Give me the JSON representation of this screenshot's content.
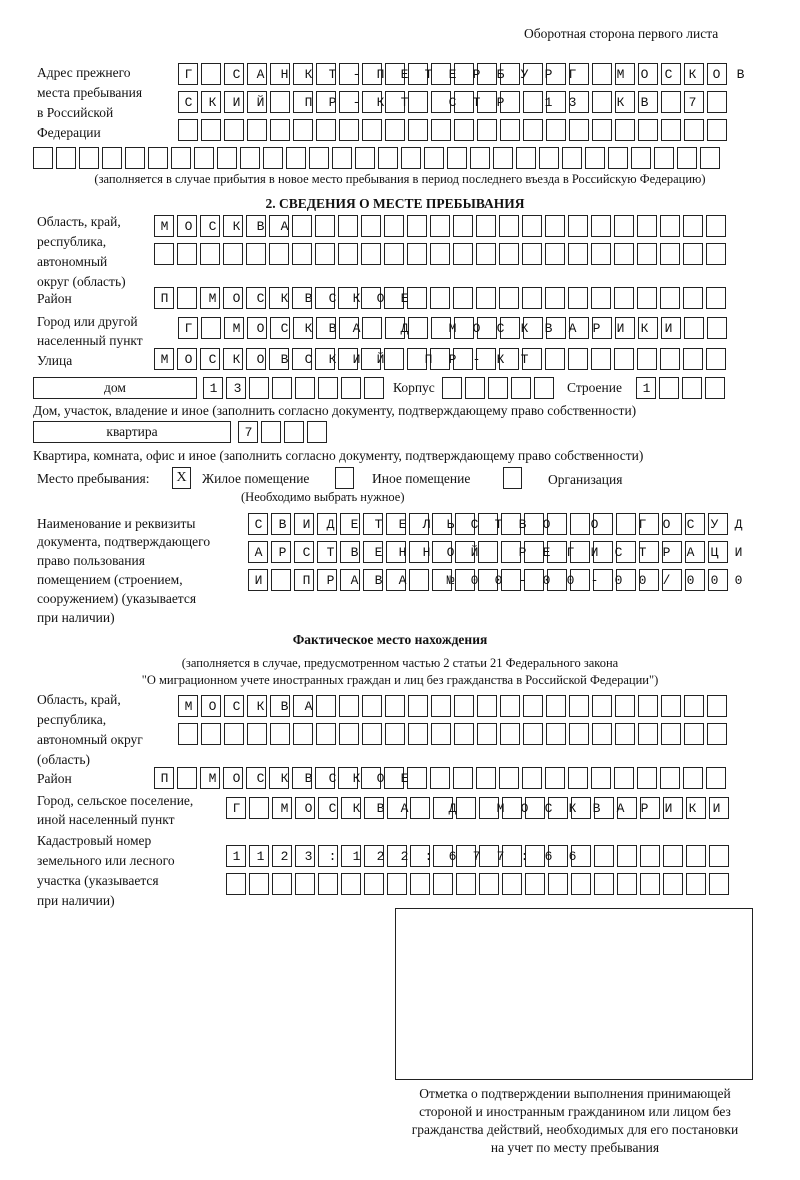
{
  "header": "Оборотная сторона первого листа",
  "prev_address": {
    "label": [
      "Адрес прежнего",
      "места пребывания",
      "в Российской",
      "Федерации"
    ],
    "rows": [
      "Г САНКТ-ПЕТЕРБУРГ МОСКОВ",
      "СКИЙ ПР-КТ СТР 13 КВ 7",
      "",
      ""
    ],
    "note": "(заполняется в случае прибытия в новое место пребывания в период последнего въезда в Российскую Федерацию)"
  },
  "section2": {
    "title": "2. СВЕДЕНИЯ О МЕСТЕ ПРЕБЫВАНИЯ",
    "region_label": [
      "Область, край,",
      "республика,",
      "автономный",
      "округ (область)"
    ],
    "region_rows": [
      "МОСКВА",
      ""
    ],
    "district_label": "Район",
    "district": "П МОСКВСКОЕ",
    "city_label": [
      "Город или другой",
      "населенный пункт"
    ],
    "city": "Г МОСКВА Д МОСКВАРИКИ",
    "street_label": "Улица",
    "street": "МОСКОВСКИЙ ПР-КТ",
    "house_type": "дом",
    "house": "13",
    "korpus_label": "Корпус",
    "korpus": "",
    "building_label": "Строение",
    "building": "1",
    "house_note": "Дом, участок, владение и иное (заполнить согласно документу, подтверждающему право собственности)",
    "flat_type": "квартира",
    "flat": "7",
    "flat_note": "Квартира, комната, офис и иное (заполнить согласно документу, подтверждающему право собственности)",
    "place_label": "Место пребывания:",
    "place_options": [
      {
        "label": "Жилое помещение",
        "mark": "Х"
      },
      {
        "label": "Иное помещение",
        "mark": ""
      },
      {
        "label": "Организация",
        "mark": ""
      }
    ],
    "place_note": "(Необходимо выбрать нужное)",
    "doc_label": [
      "Наименование и реквизиты",
      "документа, подтверждающего",
      "право пользования",
      "помещением (строением,",
      "сооружением) (указывается",
      "при наличии)"
    ],
    "doc_rows": [
      "СВИДЕТЕЛЬСТВО О ГОСУД",
      "АРСТВЕННОЙ РЕГИСТРАЦИ",
      "И ПРАВА №00-00-00/000"
    ]
  },
  "actual": {
    "title": "Фактическое место нахождения",
    "note": [
      "(заполняется в случае, предусмотренном частью 2 статьи 21 Федерального закона",
      "\"О миграционном учете иностранных граждан и лиц без гражданства в Российской Федерации\")"
    ],
    "region_label": [
      "Область, край,",
      "республика,",
      "автономный округ",
      "(область)"
    ],
    "region_rows": [
      "МОСКВА",
      ""
    ],
    "district_label": "Район",
    "district": "П МОСКВСКОЕ",
    "city_label": [
      "Город, сельское поселение,",
      "иной населенный пункт"
    ],
    "city": "Г МОСКВА Д МОСКВАРИКИ",
    "cadastre_label": [
      "Кадастровый номер",
      "земельного или лесного",
      "участка (указывается",
      "при наличии)"
    ],
    "cadastre_rows": [
      "1123:122:677:66",
      ""
    ]
  },
  "stamp_caption": [
    "Отметка о подтверждении выполнения принимающей",
    "стороной и иностранным гражданином или лицом без",
    "гражданства действий, необходимых для его постановки",
    "на учет по месту пребывания"
  ]
}
